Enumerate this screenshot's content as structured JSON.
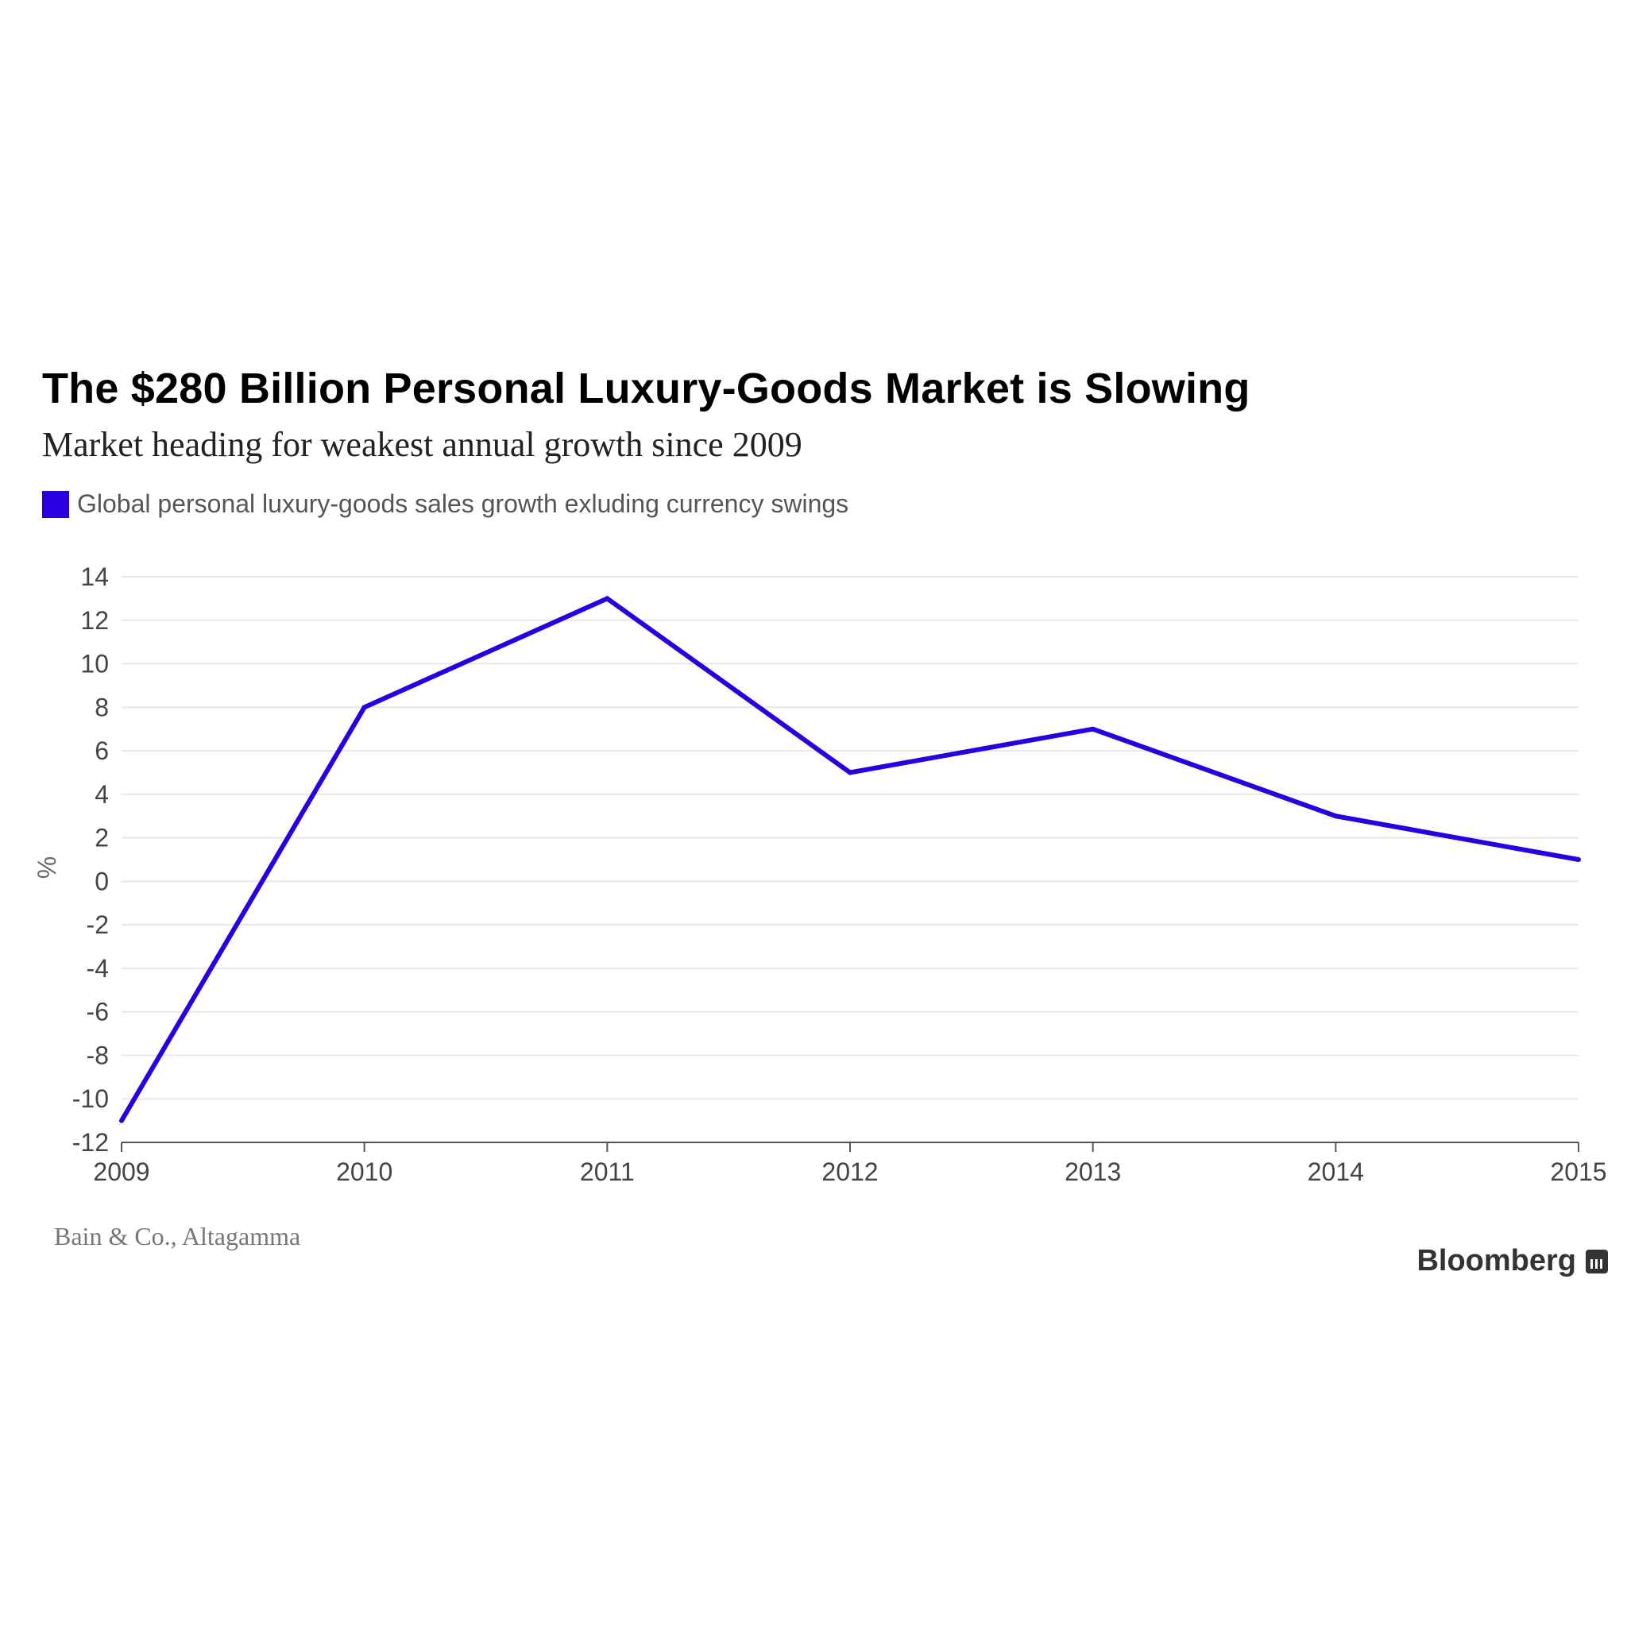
{
  "header": {
    "title": "The $280 Billion Personal Luxury-Goods Market is Slowing",
    "subtitle": "Market heading for weakest annual growth since 2009"
  },
  "legend": {
    "label": "Global personal luxury-goods sales growth exluding currency swings",
    "color": "#2a00e0"
  },
  "footer": {
    "source": "Bain & Co., Altagamma",
    "brand": "Bloomberg"
  },
  "chart_data": {
    "type": "line",
    "title": "The $280 Billion Personal Luxury-Goods Market is Slowing",
    "subtitle": "Market heading for weakest annual growth since 2009",
    "xlabel": "",
    "ylabel": "%",
    "x": [
      "2009",
      "2010",
      "2011",
      "2012",
      "2013",
      "2014",
      "2015"
    ],
    "series": [
      {
        "name": "Global personal luxury-goods sales growth exluding currency swings",
        "color": "#2a00e0",
        "values": [
          -11,
          8,
          13,
          5,
          7,
          3,
          1
        ]
      }
    ],
    "ylim": [
      -12,
      14
    ],
    "yticks": [
      14,
      12,
      10,
      8,
      6,
      4,
      2,
      0,
      -2,
      -4,
      -6,
      -8,
      -10,
      -12
    ],
    "grid": true,
    "legend_position": "top-left"
  }
}
